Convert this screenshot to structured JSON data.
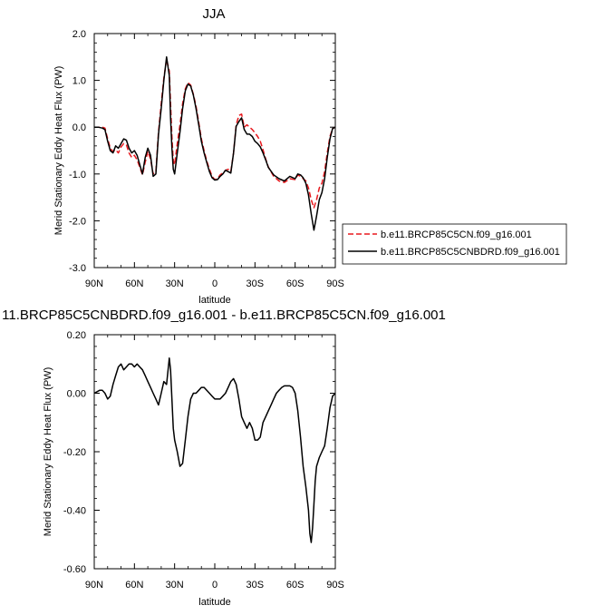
{
  "chart_data": [
    {
      "type": "line",
      "title": "JJA",
      "xlabel": "latitude",
      "ylabel": "Merid Stationary Eddy Heat Flux (PW)",
      "xlim": [
        90,
        -90
      ],
      "ylim": [
        -3.0,
        2.0
      ],
      "xticks": [
        90,
        60,
        30,
        0,
        -30,
        -60,
        -90
      ],
      "xtick_labels": [
        "90N",
        "60N",
        "30N",
        "0",
        "30S",
        "60S",
        "90S"
      ],
      "yticks": [
        -3.0,
        -2.0,
        -1.0,
        0.0,
        1.0,
        2.0
      ],
      "ytick_labels": [
        "-3.0",
        "-2.0",
        "-1.0",
        "0.0",
        "1.0",
        "2.0"
      ],
      "grid": false,
      "legend_position": "right",
      "series": [
        {
          "name": "b.e11.BRCP85C5CN.f09_g16.001",
          "color": "#e8191e",
          "style": "dashed",
          "x": [
            90,
            87,
            84,
            82,
            80,
            78,
            76,
            74,
            72,
            70,
            68,
            66,
            64,
            62,
            60,
            58,
            56,
            54,
            52,
            50,
            48,
            46,
            44,
            42,
            40,
            38,
            36,
            34,
            33,
            32,
            31,
            30,
            28,
            26,
            24,
            22,
            20,
            18,
            16,
            14,
            12,
            10,
            8,
            6,
            4,
            2,
            0,
            -2,
            -4,
            -6,
            -8,
            -10,
            -12,
            -14,
            -16,
            -18,
            -20,
            -22,
            -24,
            -26,
            -28,
            -30,
            -32,
            -34,
            -36,
            -38,
            -40,
            -44,
            -48,
            -52,
            -56,
            -60,
            -62,
            -64,
            -66,
            -68,
            -70,
            -72,
            -74,
            -76,
            -78,
            -80,
            -82,
            -84,
            -86,
            -88,
            -90
          ],
          "y": [
            0.0,
            0.0,
            0.0,
            -0.02,
            -0.25,
            -0.45,
            -0.52,
            -0.48,
            -0.55,
            -0.42,
            -0.35,
            -0.38,
            -0.55,
            -0.65,
            -0.6,
            -0.7,
            -0.85,
            -1.02,
            -0.75,
            -0.52,
            -0.68,
            -1.0,
            -0.95,
            -0.1,
            0.5,
            1.05,
            1.45,
            1.2,
            0.5,
            -0.2,
            -0.72,
            -0.8,
            -0.35,
            0.05,
            0.5,
            0.82,
            0.95,
            0.9,
            0.7,
            0.45,
            0.1,
            -0.25,
            -0.5,
            -0.72,
            -0.9,
            -1.05,
            -1.12,
            -1.1,
            -1.02,
            -0.98,
            -0.92,
            -0.9,
            -0.95,
            -0.55,
            0.05,
            0.25,
            0.28,
            0.0,
            0.05,
            0.0,
            -0.05,
            -0.12,
            -0.2,
            -0.3,
            -0.48,
            -0.68,
            -0.85,
            -1.05,
            -1.15,
            -1.18,
            -1.1,
            -1.12,
            -1.02,
            -1.05,
            -1.1,
            -1.15,
            -1.3,
            -1.55,
            -1.72,
            -1.55,
            -1.3,
            -1.2,
            -0.95,
            -0.55,
            -0.2,
            -0.03,
            0.0
          ]
        },
        {
          "name": "b.e11.BRCP85C5CNBDRD.f09_g16.001",
          "color": "#000000",
          "style": "solid",
          "x": [
            90,
            87,
            84,
            82,
            80,
            78,
            76,
            74,
            72,
            70,
            68,
            66,
            64,
            62,
            60,
            58,
            56,
            54,
            52,
            50,
            48,
            46,
            44,
            42,
            40,
            38,
            36,
            34,
            33,
            32,
            31,
            30,
            28,
            26,
            24,
            22,
            20,
            18,
            16,
            14,
            12,
            10,
            8,
            6,
            4,
            2,
            0,
            -2,
            -4,
            -6,
            -8,
            -10,
            -12,
            -14,
            -16,
            -18,
            -20,
            -22,
            -24,
            -26,
            -28,
            -30,
            -32,
            -34,
            -36,
            -38,
            -40,
            -44,
            -48,
            -52,
            -56,
            -60,
            -62,
            -64,
            -66,
            -68,
            -70,
            -72,
            -74,
            -76,
            -78,
            -80,
            -82,
            -84,
            -86,
            -88,
            -90
          ],
          "y": [
            0.0,
            0.0,
            -0.02,
            -0.05,
            -0.3,
            -0.5,
            -0.55,
            -0.4,
            -0.45,
            -0.35,
            -0.25,
            -0.28,
            -0.45,
            -0.55,
            -0.5,
            -0.6,
            -0.8,
            -1.0,
            -0.65,
            -0.45,
            -0.6,
            -1.05,
            -1.0,
            -0.15,
            0.4,
            1.0,
            1.5,
            1.1,
            0.2,
            -0.45,
            -0.9,
            -1.0,
            -0.55,
            -0.1,
            0.4,
            0.78,
            0.92,
            0.88,
            0.68,
            0.4,
            0.05,
            -0.3,
            -0.55,
            -0.75,
            -0.95,
            -1.08,
            -1.13,
            -1.12,
            -1.05,
            -1.0,
            -0.92,
            -0.95,
            -0.98,
            -0.55,
            0.02,
            0.12,
            0.2,
            -0.05,
            -0.15,
            -0.15,
            -0.2,
            -0.3,
            -0.35,
            -0.42,
            -0.55,
            -0.7,
            -0.86,
            -1.02,
            -1.1,
            -1.15,
            -1.05,
            -1.1,
            -1.0,
            -1.02,
            -1.08,
            -1.2,
            -1.45,
            -1.85,
            -2.2,
            -1.9,
            -1.55,
            -1.4,
            -1.1,
            -0.65,
            -0.25,
            -0.03,
            0.0
          ]
        }
      ]
    },
    {
      "type": "line",
      "title": "11.BRCP85C5CNBDRD.f09_g16.001 - b.e11.BRCP85C5CN.f09_g16.001",
      "xlabel": "latitude",
      "ylabel": "Merid Stationary Eddy Heat Flux (PW)",
      "xlim": [
        90,
        -90
      ],
      "ylim": [
        -0.6,
        0.2
      ],
      "xticks": [
        90,
        60,
        30,
        0,
        -30,
        -60,
        -90
      ],
      "xtick_labels": [
        "90N",
        "60N",
        "30N",
        "0",
        "30S",
        "60S",
        "90S"
      ],
      "yticks": [
        -0.6,
        -0.4,
        -0.2,
        0.0,
        0.2
      ],
      "ytick_labels": [
        "-0.60",
        "-0.40",
        "-0.20",
        "0.00",
        "0.20"
      ],
      "grid": false,
      "series": [
        {
          "color": "#000000",
          "style": "solid",
          "x": [
            90,
            86,
            84,
            82,
            80,
            78,
            76,
            74,
            72,
            70,
            68,
            66,
            64,
            62,
            60,
            58,
            56,
            54,
            52,
            50,
            48,
            46,
            44,
            42,
            40,
            38,
            36,
            34,
            33,
            32,
            31,
            30,
            28,
            26,
            24,
            22,
            20,
            18,
            16,
            14,
            12,
            10,
            8,
            6,
            4,
            2,
            0,
            -2,
            -4,
            -6,
            -8,
            -10,
            -12,
            -14,
            -16,
            -18,
            -20,
            -22,
            -24,
            -26,
            -28,
            -30,
            -32,
            -34,
            -36,
            -38,
            -40,
            -42,
            -44,
            -46,
            -48,
            -50,
            -52,
            -54,
            -56,
            -58,
            -60,
            -62,
            -64,
            -66,
            -68,
            -70,
            -71,
            -72,
            -73,
            -74,
            -75,
            -76,
            -78,
            -80,
            -82,
            -84,
            -86,
            -88,
            -90
          ],
          "y": [
            0.0,
            0.01,
            0.01,
            0.0,
            -0.02,
            -0.01,
            0.03,
            0.06,
            0.09,
            0.1,
            0.08,
            0.09,
            0.1,
            0.1,
            0.09,
            0.1,
            0.09,
            0.08,
            0.06,
            0.04,
            0.02,
            0.0,
            -0.02,
            -0.04,
            0.0,
            0.04,
            0.03,
            0.12,
            0.08,
            -0.02,
            -0.12,
            -0.16,
            -0.2,
            -0.25,
            -0.24,
            -0.16,
            -0.08,
            -0.02,
            0.0,
            0.0,
            0.01,
            0.02,
            0.02,
            0.01,
            0.0,
            -0.01,
            -0.02,
            -0.02,
            -0.02,
            -0.01,
            0.0,
            0.02,
            0.04,
            0.05,
            0.03,
            -0.02,
            -0.08,
            -0.1,
            -0.12,
            -0.1,
            -0.12,
            -0.16,
            -0.16,
            -0.15,
            -0.1,
            -0.08,
            -0.06,
            -0.04,
            -0.02,
            0.0,
            0.01,
            0.02,
            0.025,
            0.025,
            0.025,
            0.02,
            0.0,
            -0.06,
            -0.15,
            -0.25,
            -0.32,
            -0.4,
            -0.48,
            -0.51,
            -0.46,
            -0.38,
            -0.3,
            -0.25,
            -0.22,
            -0.2,
            -0.18,
            -0.12,
            -0.05,
            -0.01,
            0.0
          ]
        }
      ]
    }
  ]
}
